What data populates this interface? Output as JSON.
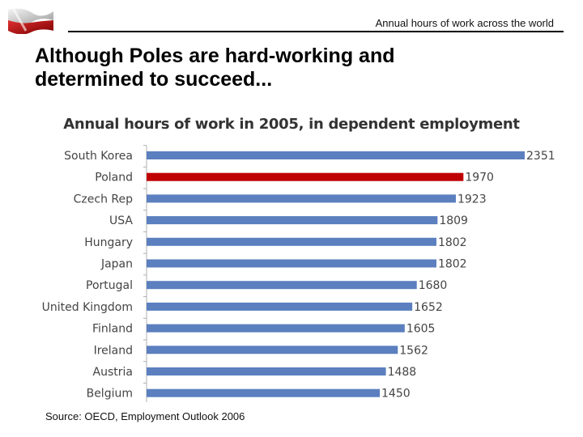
{
  "header": {
    "label": "Annual hours of work across the world"
  },
  "slide": {
    "title_line1": "Although Poles are hard-working and",
    "title_line2": "determined to succeed...",
    "source": "Source: OECD, Employment Outlook 2006"
  },
  "colors": {
    "default_bar": "#5b7fbf",
    "highlight_bar": "#c00000",
    "axis": "#b0b0b0"
  },
  "chart_data": {
    "type": "bar",
    "orientation": "horizontal",
    "title": "Annual hours of work in 2005, in dependent employment",
    "categories": [
      "South Korea",
      "Poland",
      "Czech Rep",
      "USA",
      "Hungary",
      "Japan",
      "Portugal",
      "United Kingdom",
      "Finland",
      "Ireland",
      "Austria",
      "Belgium"
    ],
    "values": [
      2351,
      1970,
      1923,
      1809,
      1802,
      1802,
      1680,
      1652,
      1605,
      1562,
      1488,
      1450
    ],
    "highlight": "Poland",
    "xlim": [
      0,
      2351
    ],
    "data_labels": true,
    "grid": false,
    "legend": "none"
  }
}
